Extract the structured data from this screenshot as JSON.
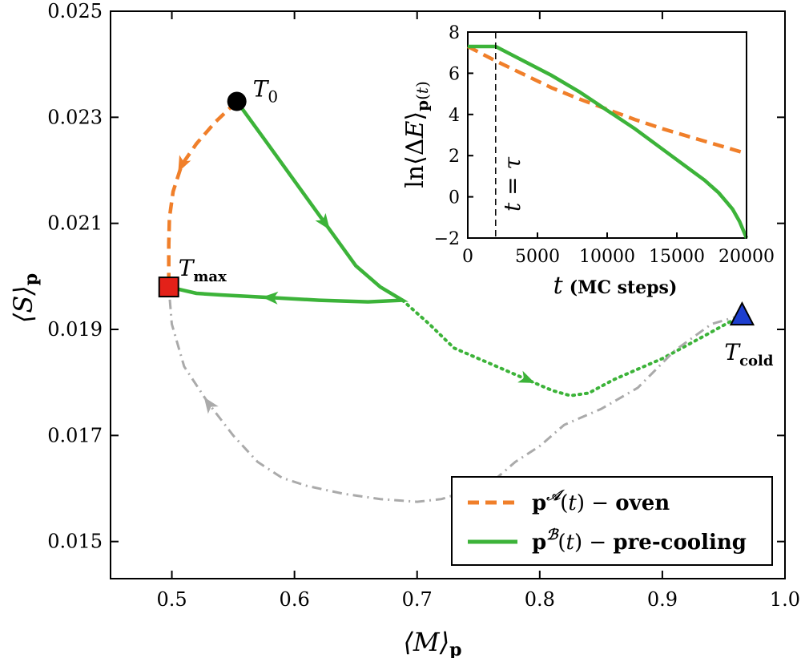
{
  "chart_data": [
    {
      "type": "line",
      "xlabel": "⟨M⟩p",
      "ylabel": "⟨S⟩p",
      "xlim": [
        0.45,
        1.0
      ],
      "ylim": [
        0.0143,
        0.025
      ],
      "xticks": [
        0.5,
        0.6,
        0.7,
        0.8,
        0.9,
        1.0
      ],
      "xtick_labels": [
        "0.5",
        "0.6",
        "0.7",
        "0.8",
        "0.9",
        "1.0"
      ],
      "yticks": [
        0.015,
        0.017,
        0.019,
        0.021,
        0.023,
        0.025
      ],
      "ytick_labels": [
        "0.015",
        "0.017",
        "0.019",
        "0.021",
        "0.023",
        "0.025"
      ],
      "grid": false,
      "legend_position": "bottom-right",
      "legend": [
        {
          "label": "p^A(t) − oven",
          "color": "#f07f2a",
          "style": "dashed"
        },
        {
          "label": "p^B(t) − pre-cooling",
          "color": "#3cb339",
          "style": "solid"
        }
      ],
      "series": [
        {
          "name": "p^A(t) − oven",
          "color": "#f07f2a",
          "style": "dashed",
          "x": [
            0.553,
            0.535,
            0.52,
            0.508,
            0.501,
            0.498,
            0.4975,
            0.4975,
            0.4975
          ],
          "y": [
            0.0233,
            0.0229,
            0.0225,
            0.0221,
            0.0216,
            0.0211,
            0.0206,
            0.0202,
            0.0198
          ]
        },
        {
          "name": "p^B(t) − pre-cooling",
          "color": "#3cb339",
          "style": "solid",
          "x": [
            0.553,
            0.575,
            0.6,
            0.625,
            0.65,
            0.67,
            0.688,
            0.66,
            0.62,
            0.58,
            0.54,
            0.52,
            0.4975
          ],
          "y": [
            0.0233,
            0.0226,
            0.0218,
            0.021,
            0.0202,
            0.0198,
            0.01955,
            0.01952,
            0.01955,
            0.0196,
            0.01965,
            0.01968,
            0.0198
          ]
        },
        {
          "name": "",
          "color": "#3cb339",
          "style": "dotted",
          "x": [
            0.688,
            0.71,
            0.73,
            0.76,
            0.79,
            0.81,
            0.825,
            0.84,
            0.86,
            0.88,
            0.9,
            0.92,
            0.94,
            0.965
          ],
          "y": [
            0.01955,
            0.0191,
            0.01865,
            0.01835,
            0.01805,
            0.01785,
            0.01775,
            0.0178,
            0.01805,
            0.01825,
            0.01845,
            0.0187,
            0.01895,
            0.01927
          ]
        },
        {
          "name": "",
          "color": "#aaaaaa",
          "style": "dashdot",
          "x": [
            0.965,
            0.94,
            0.91,
            0.88,
            0.85,
            0.82,
            0.8,
            0.78,
            0.76,
            0.74,
            0.72,
            0.7,
            0.67,
            0.64,
            0.61,
            0.59,
            0.57,
            0.55,
            0.53,
            0.51,
            0.5,
            0.4975
          ],
          "y": [
            0.01927,
            0.0191,
            0.0186,
            0.0179,
            0.0175,
            0.0172,
            0.0168,
            0.0165,
            0.0161,
            0.01595,
            0.0158,
            0.01575,
            0.0158,
            0.0159,
            0.01605,
            0.0162,
            0.0165,
            0.017,
            0.0176,
            0.0183,
            0.0191,
            0.0198
          ]
        }
      ],
      "points": [
        {
          "label": "T0",
          "x": 0.553,
          "y": 0.0233,
          "marker": "circle",
          "color": "#000000"
        },
        {
          "label": "Tmax",
          "x": 0.4975,
          "y": 0.0198,
          "marker": "square",
          "color": "#e32119"
        },
        {
          "label": "Tcold",
          "x": 0.965,
          "y": 0.01927,
          "marker": "triangle",
          "color": "#1d3ecf"
        }
      ]
    },
    {
      "type": "line",
      "xlabel": "t (MC steps)",
      "ylabel": "ln⟨ΔE⟩p(t)",
      "xlim": [
        0,
        20000
      ],
      "ylim": [
        -2,
        8
      ],
      "xticks": [
        0,
        5000,
        10000,
        15000,
        20000
      ],
      "xtick_labels": [
        "0",
        "5000",
        "10000",
        "15000",
        "20000"
      ],
      "yticks": [
        -2,
        0,
        2,
        4,
        6,
        8
      ],
      "ytick_labels": [
        "−2",
        "0",
        "2",
        "4",
        "6",
        "8"
      ],
      "annotation": {
        "label": "t = τ",
        "x": 2000
      },
      "series": [
        {
          "name": "",
          "color": "#f07f2a",
          "style": "dashed",
          "x": [
            0,
            2000,
            4000,
            6000,
            8000,
            10000,
            12000,
            14000,
            16000,
            18000,
            20000
          ],
          "y": [
            7.3,
            6.6,
            5.95,
            5.3,
            4.75,
            4.25,
            3.75,
            3.3,
            2.9,
            2.5,
            2.1
          ]
        },
        {
          "name": "",
          "color": "#3cb339",
          "style": "solid",
          "x": [
            0,
            2000,
            4000,
            6000,
            8000,
            10000,
            12000,
            14000,
            16000,
            17000,
            18000,
            18500,
            19000,
            19500,
            20000
          ],
          "y": [
            7.3,
            7.3,
            6.6,
            5.9,
            5.1,
            4.2,
            3.3,
            2.3,
            1.3,
            0.8,
            0.2,
            -0.2,
            -0.6,
            -1.2,
            -2.0
          ]
        }
      ]
    }
  ]
}
